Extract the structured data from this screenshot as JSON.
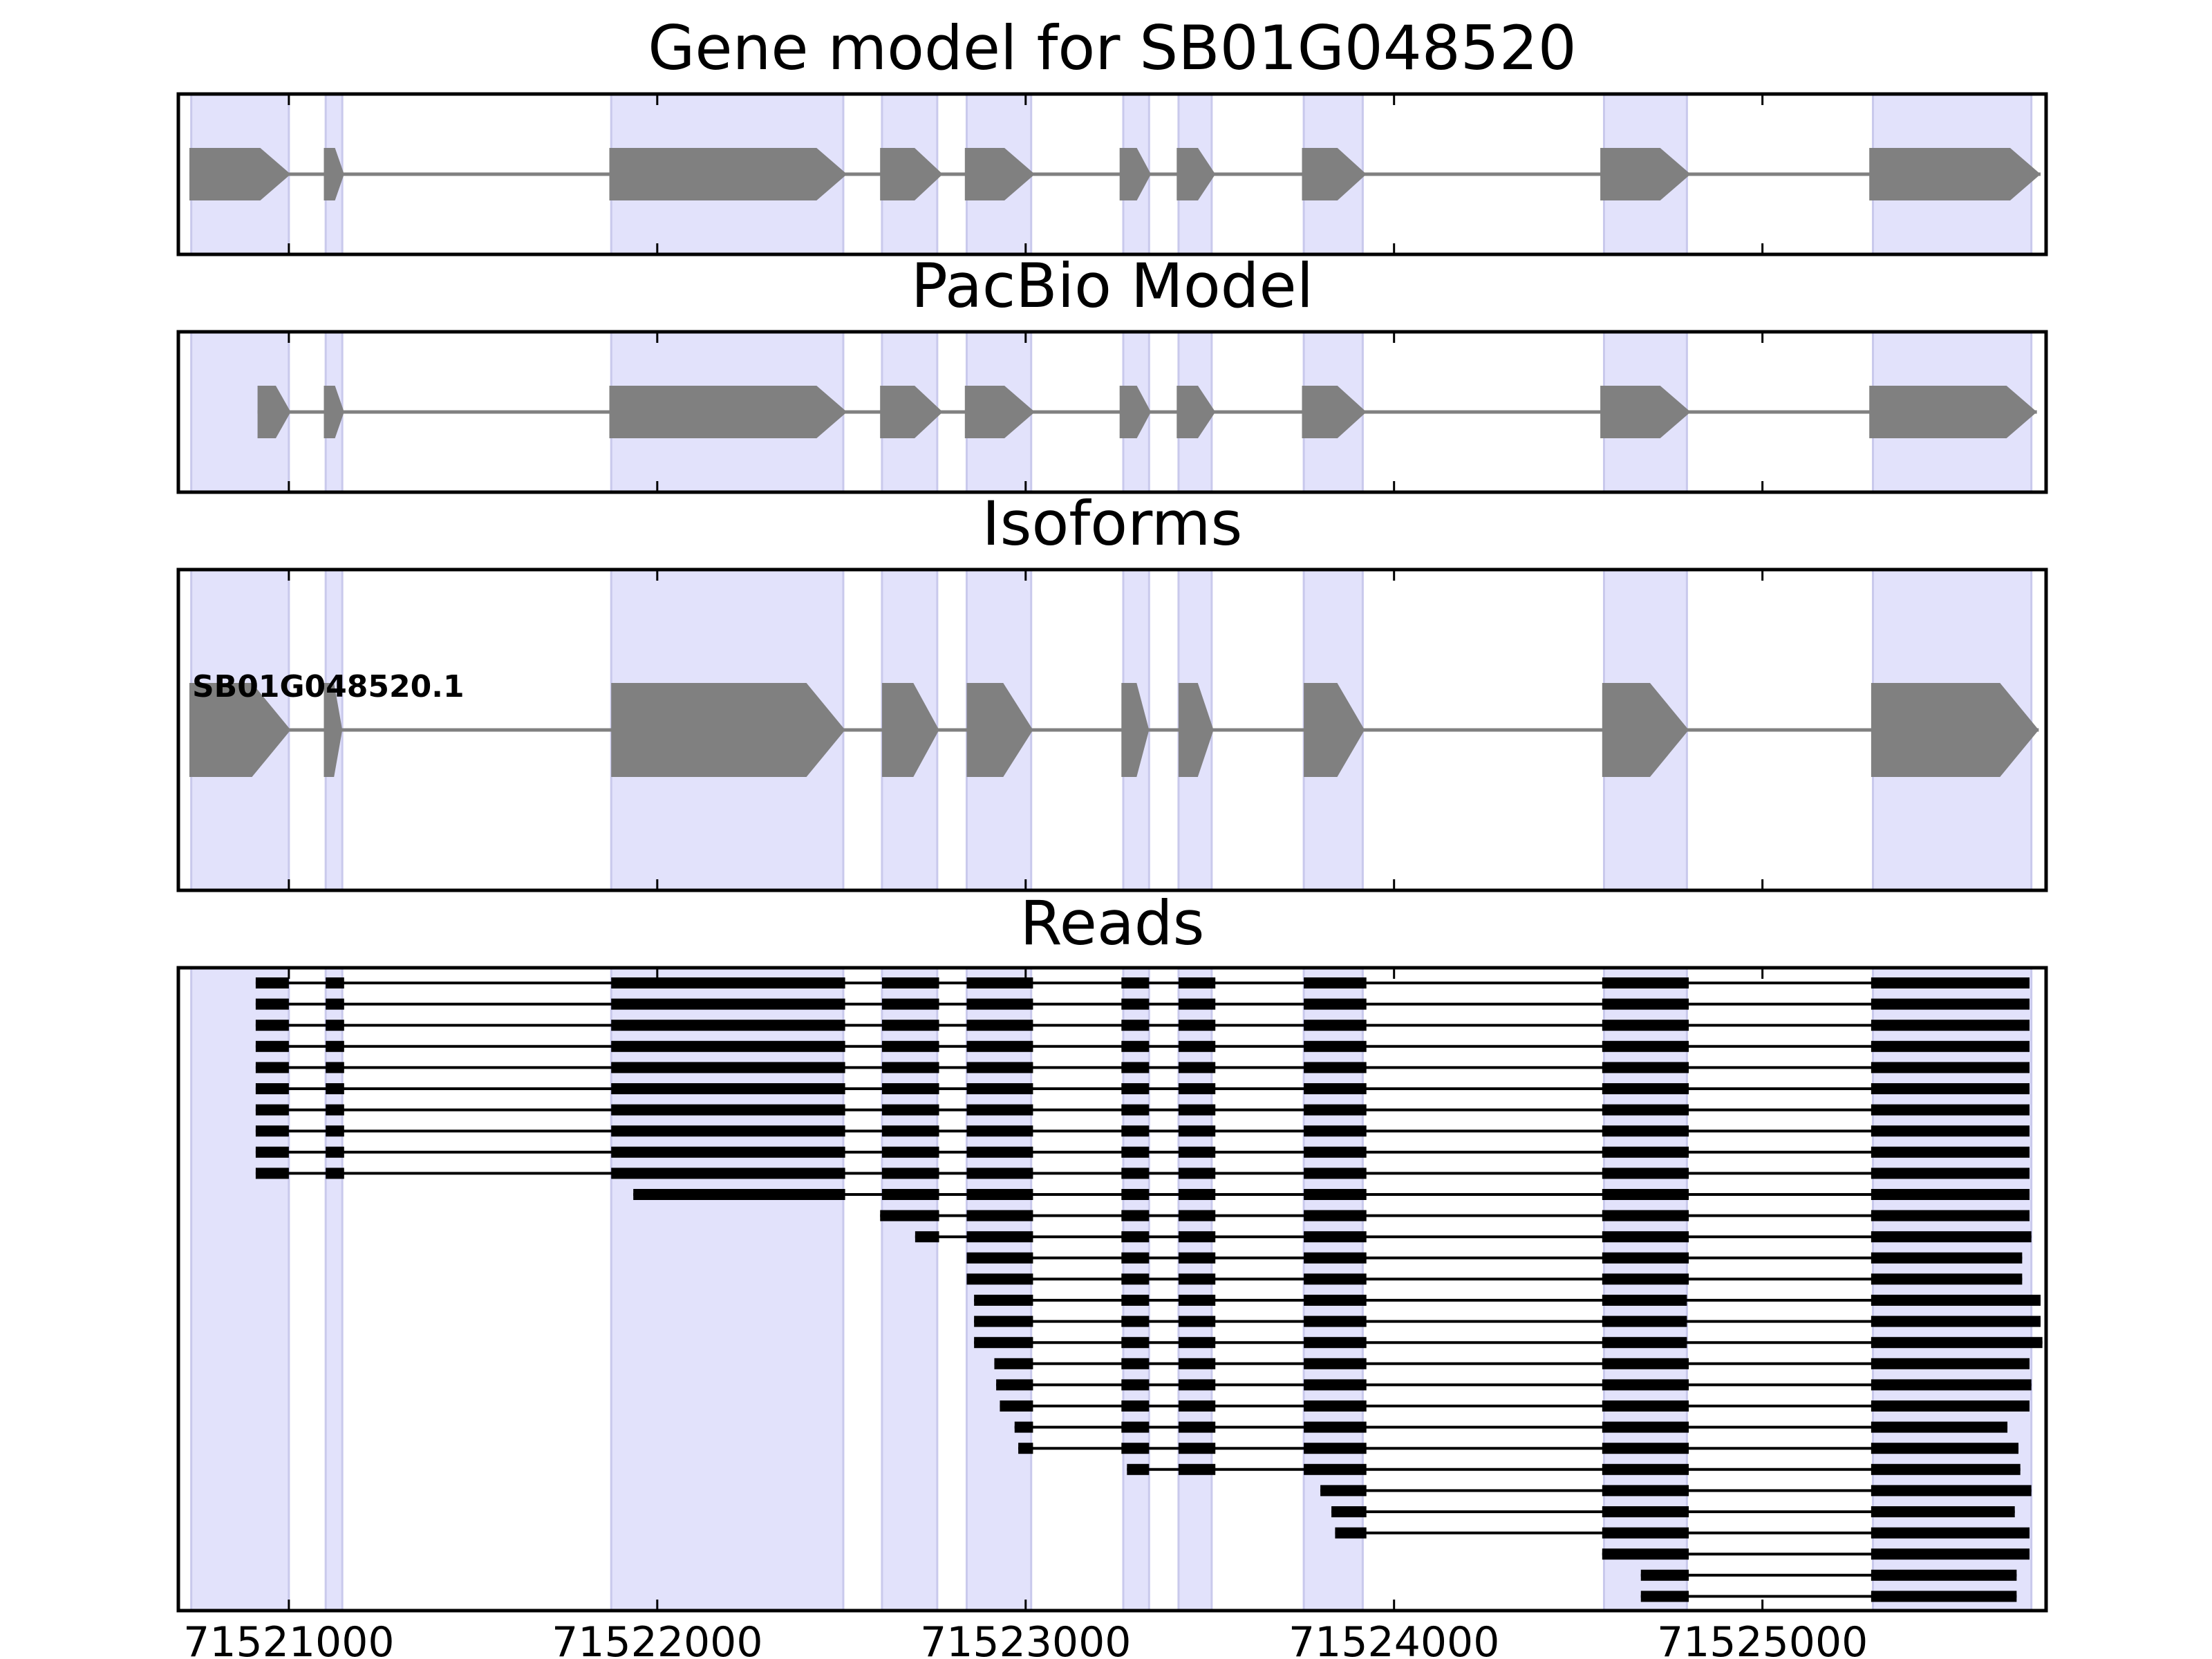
{
  "chart_data": {
    "type": "gene-structure",
    "xlim": [
      71520700,
      71525770
    ],
    "xticks": [
      71521000,
      71522000,
      71523000,
      71524000,
      71525000
    ],
    "xtick_labels": [
      "71521000",
      "71522000",
      "71523000",
      "71524000",
      "71525000"
    ],
    "colors": {
      "highlight": "#e2e2fb",
      "highlight_edge": "#c9c9ec",
      "gene": "#808080",
      "read": "#000000",
      "frame": "#000000"
    },
    "highlight_regions": [
      [
        71520735,
        71521000
      ],
      [
        71521100,
        71521145
      ],
      [
        71521875,
        71522505
      ],
      [
        71522610,
        71522760
      ],
      [
        71522840,
        71523015
      ],
      [
        71523265,
        71523335
      ],
      [
        71523415,
        71523505
      ],
      [
        71523755,
        71523915
      ],
      [
        71524570,
        71524795
      ],
      [
        71525300,
        71525730
      ]
    ],
    "panels": [
      {
        "id": "gene-model",
        "title": "Gene model for SB01G048520",
        "strand": "+",
        "exons": [
          [
            71520730,
            71521005
          ],
          [
            71521095,
            71521150
          ],
          [
            71521870,
            71522515
          ],
          [
            71522605,
            71522775
          ],
          [
            71522835,
            71523025
          ],
          [
            71523255,
            71523340
          ],
          [
            71523410,
            71523515
          ],
          [
            71523750,
            71523925
          ],
          [
            71524560,
            71524805
          ],
          [
            71525290,
            71525755
          ]
        ]
      },
      {
        "id": "pacbio-model",
        "title": "PacBio Model",
        "strand": "+",
        "exons": [
          [
            71520915,
            71521005
          ],
          [
            71521095,
            71521150
          ],
          [
            71521870,
            71522515
          ],
          [
            71522605,
            71522775
          ],
          [
            71522835,
            71523025
          ],
          [
            71523255,
            71523340
          ],
          [
            71523410,
            71523515
          ],
          [
            71523750,
            71523925
          ],
          [
            71524560,
            71524805
          ],
          [
            71525290,
            71525745
          ]
        ]
      },
      {
        "id": "isoforms",
        "title": "Isoforms",
        "strand": "+",
        "isoform_label": "SB01G048520.1",
        "exons": [
          [
            71520730,
            71521005
          ],
          [
            71521095,
            71521145
          ],
          [
            71521875,
            71522510
          ],
          [
            71522610,
            71522765
          ],
          [
            71522840,
            71523020
          ],
          [
            71523260,
            71523335
          ],
          [
            71523415,
            71523510
          ],
          [
            71523755,
            71523920
          ],
          [
            71524565,
            71524800
          ],
          [
            71525295,
            71525750
          ]
        ]
      },
      {
        "id": "reads",
        "title": "Reads",
        "reads": [
          [
            [
              71520910,
              71521000
            ],
            [
              71521100,
              71521150
            ],
            [
              71521875,
              71522510
            ],
            [
              71522610,
              71522765
            ],
            [
              71522840,
              71523020
            ],
            [
              71523260,
              71523335
            ],
            [
              71523415,
              71523515
            ],
            [
              71523755,
              71523925
            ],
            [
              71524565,
              71524800
            ],
            [
              71525295,
              71525725
            ]
          ],
          [
            [
              71520910,
              71521000
            ],
            [
              71521100,
              71521150
            ],
            [
              71521875,
              71522510
            ],
            [
              71522610,
              71522765
            ],
            [
              71522840,
              71523020
            ],
            [
              71523260,
              71523335
            ],
            [
              71523415,
              71523515
            ],
            [
              71523755,
              71523925
            ],
            [
              71524565,
              71524800
            ],
            [
              71525295,
              71525725
            ]
          ],
          [
            [
              71520910,
              71521000
            ],
            [
              71521100,
              71521150
            ],
            [
              71521875,
              71522510
            ],
            [
              71522610,
              71522765
            ],
            [
              71522840,
              71523020
            ],
            [
              71523260,
              71523335
            ],
            [
              71523415,
              71523515
            ],
            [
              71523755,
              71523925
            ],
            [
              71524565,
              71524800
            ],
            [
              71525295,
              71525725
            ]
          ],
          [
            [
              71520910,
              71521000
            ],
            [
              71521100,
              71521150
            ],
            [
              71521875,
              71522510
            ],
            [
              71522610,
              71522765
            ],
            [
              71522840,
              71523020
            ],
            [
              71523260,
              71523335
            ],
            [
              71523415,
              71523515
            ],
            [
              71523755,
              71523925
            ],
            [
              71524565,
              71524800
            ],
            [
              71525295,
              71525725
            ]
          ],
          [
            [
              71520910,
              71521000
            ],
            [
              71521100,
              71521150
            ],
            [
              71521875,
              71522510
            ],
            [
              71522610,
              71522765
            ],
            [
              71522840,
              71523020
            ],
            [
              71523260,
              71523335
            ],
            [
              71523415,
              71523515
            ],
            [
              71523755,
              71523925
            ],
            [
              71524565,
              71524800
            ],
            [
              71525295,
              71525725
            ]
          ],
          [
            [
              71520910,
              71521000
            ],
            [
              71521100,
              71521150
            ],
            [
              71521875,
              71522510
            ],
            [
              71522610,
              71522765
            ],
            [
              71522840,
              71523020
            ],
            [
              71523260,
              71523335
            ],
            [
              71523415,
              71523515
            ],
            [
              71523755,
              71523925
            ],
            [
              71524565,
              71524800
            ],
            [
              71525295,
              71525725
            ]
          ],
          [
            [
              71520910,
              71521000
            ],
            [
              71521100,
              71521150
            ],
            [
              71521875,
              71522510
            ],
            [
              71522610,
              71522765
            ],
            [
              71522840,
              71523020
            ],
            [
              71523260,
              71523335
            ],
            [
              71523415,
              71523515
            ],
            [
              71523755,
              71523925
            ],
            [
              71524565,
              71524800
            ],
            [
              71525295,
              71525725
            ]
          ],
          [
            [
              71520910,
              71521000
            ],
            [
              71521100,
              71521150
            ],
            [
              71521875,
              71522510
            ],
            [
              71522610,
              71522765
            ],
            [
              71522840,
              71523020
            ],
            [
              71523260,
              71523335
            ],
            [
              71523415,
              71523515
            ],
            [
              71523755,
              71523925
            ],
            [
              71524565,
              71524800
            ],
            [
              71525295,
              71525725
            ]
          ],
          [
            [
              71520910,
              71521000
            ],
            [
              71521100,
              71521150
            ],
            [
              71521875,
              71522510
            ],
            [
              71522610,
              71522765
            ],
            [
              71522840,
              71523020
            ],
            [
              71523260,
              71523335
            ],
            [
              71523415,
              71523515
            ],
            [
              71523755,
              71523925
            ],
            [
              71524565,
              71524800
            ],
            [
              71525295,
              71525725
            ]
          ],
          [
            [
              71520910,
              71521000
            ],
            [
              71521100,
              71521150
            ],
            [
              71521875,
              71522510
            ],
            [
              71522610,
              71522765
            ],
            [
              71522840,
              71523020
            ],
            [
              71523260,
              71523335
            ],
            [
              71523415,
              71523515
            ],
            [
              71523755,
              71523925
            ],
            [
              71524565,
              71524800
            ],
            [
              71525295,
              71525725
            ]
          ],
          [
            [
              71521935,
              71522510
            ],
            [
              71522610,
              71522765
            ],
            [
              71522840,
              71523020
            ],
            [
              71523260,
              71523335
            ],
            [
              71523415,
              71523515
            ],
            [
              71523755,
              71523925
            ],
            [
              71524565,
              71524800
            ],
            [
              71525295,
              71525725
            ]
          ],
          [
            [
              71522605,
              71522765
            ],
            [
              71522840,
              71523020
            ],
            [
              71523260,
              71523335
            ],
            [
              71523415,
              71523515
            ],
            [
              71523755,
              71523925
            ],
            [
              71524565,
              71524800
            ],
            [
              71525295,
              71525725
            ]
          ],
          [
            [
              71522700,
              71522765
            ],
            [
              71522840,
              71523020
            ],
            [
              71523260,
              71523335
            ],
            [
              71523415,
              71523515
            ],
            [
              71523755,
              71523925
            ],
            [
              71524565,
              71524800
            ],
            [
              71525295,
              71525730
            ]
          ],
          [
            [
              71522840,
              71523020
            ],
            [
              71523260,
              71523335
            ],
            [
              71523415,
              71523515
            ],
            [
              71523755,
              71523925
            ],
            [
              71524565,
              71524800
            ],
            [
              71525295,
              71525705
            ]
          ],
          [
            [
              71522840,
              71523020
            ],
            [
              71523260,
              71523335
            ],
            [
              71523415,
              71523515
            ],
            [
              71523755,
              71523925
            ],
            [
              71524565,
              71524800
            ],
            [
              71525295,
              71525705
            ]
          ],
          [
            [
              71522860,
              71523020
            ],
            [
              71523260,
              71523335
            ],
            [
              71523415,
              71523515
            ],
            [
              71523755,
              71523925
            ],
            [
              71524565,
              71524795
            ],
            [
              71525295,
              71525755
            ]
          ],
          [
            [
              71522860,
              71523020
            ],
            [
              71523260,
              71523335
            ],
            [
              71523415,
              71523515
            ],
            [
              71523755,
              71523925
            ],
            [
              71524565,
              71524795
            ],
            [
              71525295,
              71525755
            ]
          ],
          [
            [
              71522860,
              71523020
            ],
            [
              71523260,
              71523335
            ],
            [
              71523415,
              71523515
            ],
            [
              71523755,
              71523925
            ],
            [
              71524565,
              71524795
            ],
            [
              71525295,
              71525760
            ]
          ],
          [
            [
              71522915,
              71523020
            ],
            [
              71523260,
              71523335
            ],
            [
              71523415,
              71523515
            ],
            [
              71523755,
              71523925
            ],
            [
              71524565,
              71524800
            ],
            [
              71525295,
              71525725
            ]
          ],
          [
            [
              71522920,
              71523020
            ],
            [
              71523260,
              71523335
            ],
            [
              71523415,
              71523515
            ],
            [
              71523755,
              71523925
            ],
            [
              71524565,
              71524800
            ],
            [
              71525295,
              71525730
            ]
          ],
          [
            [
              71522930,
              71523020
            ],
            [
              71523260,
              71523335
            ],
            [
              71523415,
              71523515
            ],
            [
              71523755,
              71523925
            ],
            [
              71524565,
              71524800
            ],
            [
              71525295,
              71525725
            ]
          ],
          [
            [
              71522970,
              71523020
            ],
            [
              71523260,
              71523335
            ],
            [
              71523415,
              71523515
            ],
            [
              71523755,
              71523925
            ],
            [
              71524565,
              71524800
            ],
            [
              71525295,
              71525665
            ]
          ],
          [
            [
              71522980,
              71523020
            ],
            [
              71523260,
              71523335
            ],
            [
              71523415,
              71523515
            ],
            [
              71523755,
              71523925
            ],
            [
              71524565,
              71524800
            ],
            [
              71525295,
              71525695
            ]
          ],
          [
            [
              71523275,
              71523335
            ],
            [
              71523415,
              71523515
            ],
            [
              71523755,
              71523925
            ],
            [
              71524565,
              71524800
            ],
            [
              71525295,
              71525700
            ]
          ],
          [
            [
              71523800,
              71523925
            ],
            [
              71524565,
              71524800
            ],
            [
              71525295,
              71525730
            ]
          ],
          [
            [
              71523830,
              71523925
            ],
            [
              71524565,
              71524800
            ],
            [
              71525295,
              71525685
            ]
          ],
          [
            [
              71523840,
              71523925
            ],
            [
              71524565,
              71524800
            ],
            [
              71525295,
              71525725
            ]
          ],
          [
            [
              71524565,
              71524800
            ],
            [
              71525295,
              71525725
            ]
          ],
          [
            [
              71524670,
              71524800
            ],
            [
              71525295,
              71525690
            ]
          ],
          [
            [
              71524670,
              71524800
            ],
            [
              71525295,
              71525690
            ]
          ]
        ]
      }
    ]
  }
}
